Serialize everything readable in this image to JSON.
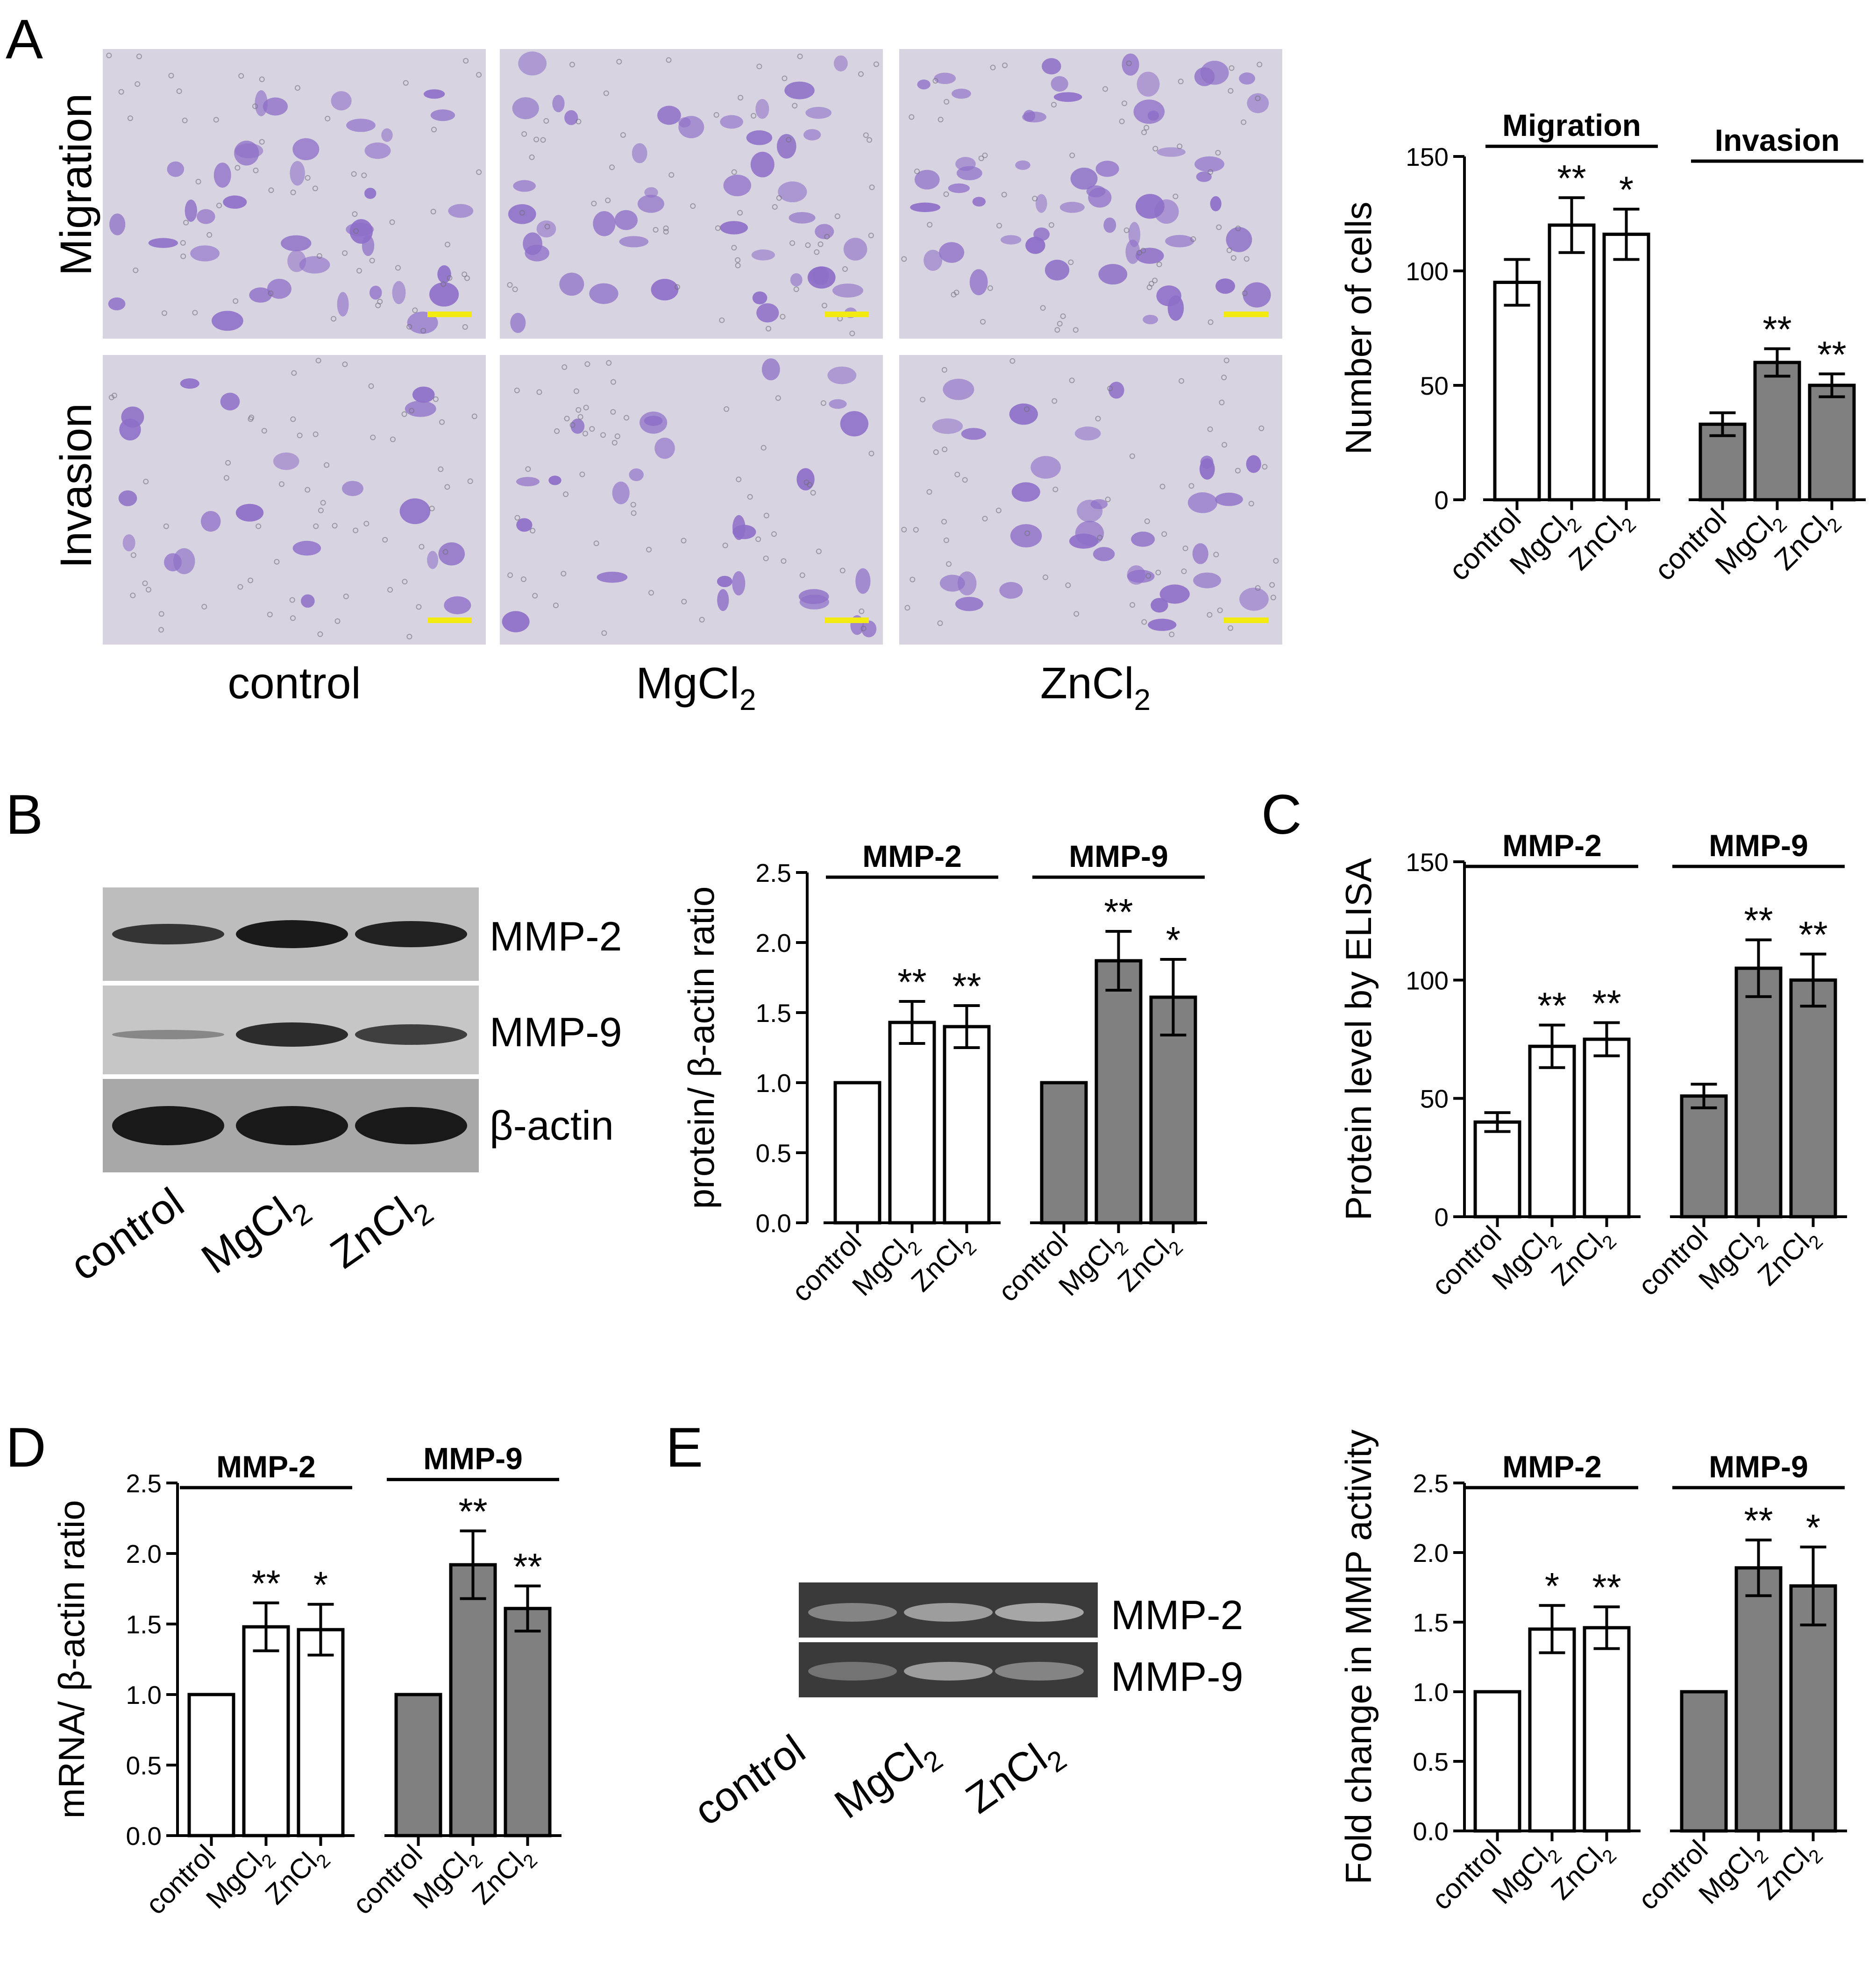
{
  "figure": {
    "panel_labels": [
      "A",
      "B",
      "C",
      "D",
      "E"
    ],
    "groups": [
      "control",
      "MgCl",
      "ZnCl"
    ],
    "subscript": "2",
    "colors": {
      "white_bar": "#ffffff",
      "gray_bar": "#808080",
      "stain": "#8e6fc8",
      "membrane": "#d8d3e0",
      "scale_bar": "#f2ea10"
    }
  },
  "panel_a": {
    "row_labels": [
      "Migration",
      "Invasion"
    ],
    "col_labels": [
      "control",
      "MgCl",
      "ZnCl"
    ]
  },
  "panel_b": {
    "blot_labels": [
      "MMP-2",
      "MMP-9",
      "β-actin"
    ],
    "lane_labels": [
      "control",
      "MgCl",
      "ZnCl"
    ]
  },
  "panel_e": {
    "gel_labels": [
      "MMP-2",
      "MMP-9"
    ],
    "lane_labels": [
      "control",
      "MgCl",
      "ZnCl"
    ]
  },
  "chart_data": [
    {
      "id": "A",
      "type": "bar",
      "ylabel": "Number of cells",
      "ylim": [
        0,
        150
      ],
      "yticks": [
        "0",
        "50",
        "100",
        "150"
      ],
      "categories": [
        "control",
        "MgCl2",
        "ZnCl2"
      ],
      "series": [
        {
          "name": "Migration",
          "values": [
            95,
            120,
            116
          ],
          "errors": [
            10,
            12,
            11
          ],
          "stars": [
            "",
            "**",
            "*"
          ],
          "fill": "white"
        },
        {
          "name": "Invasion",
          "values": [
            33,
            60,
            50
          ],
          "errors": [
            5,
            6,
            5
          ],
          "stars": [
            "",
            "**",
            "**"
          ],
          "fill": "gray"
        }
      ]
    },
    {
      "id": "B",
      "type": "bar",
      "ylabel": "protein/ β-actin ratio",
      "ylim": [
        0,
        2.5
      ],
      "yticks": [
        "0.0",
        "0.5",
        "1.0",
        "1.5",
        "2.0",
        "2.5"
      ],
      "categories": [
        "control",
        "MgCl2",
        "ZnCl2"
      ],
      "series": [
        {
          "name": "MMP-2",
          "values": [
            1.0,
            1.43,
            1.4
          ],
          "errors": [
            0,
            0.15,
            0.15
          ],
          "stars": [
            "",
            "**",
            "**"
          ],
          "fill": "white"
        },
        {
          "name": "MMP-9",
          "values": [
            1.0,
            1.87,
            1.61
          ],
          "errors": [
            0,
            0.21,
            0.27
          ],
          "stars": [
            "",
            "**",
            "*"
          ],
          "fill": "gray"
        }
      ]
    },
    {
      "id": "C",
      "type": "bar",
      "ylabel": "Protein level by ELISA",
      "ylim": [
        0,
        150
      ],
      "yticks": [
        "0",
        "50",
        "100",
        "150"
      ],
      "categories": [
        "control",
        "MgCl2",
        "ZnCl2"
      ],
      "series": [
        {
          "name": "MMP-2",
          "values": [
            40,
            72,
            75
          ],
          "errors": [
            4,
            9,
            7
          ],
          "stars": [
            "",
            "**",
            "**"
          ],
          "fill": "white"
        },
        {
          "name": "MMP-9",
          "values": [
            51,
            105,
            100
          ],
          "errors": [
            5,
            12,
            11
          ],
          "stars": [
            "",
            "**",
            "**"
          ],
          "fill": "gray"
        }
      ]
    },
    {
      "id": "D",
      "type": "bar",
      "ylabel": "mRNA/ β-actin ratio",
      "ylim": [
        0,
        2.5
      ],
      "yticks": [
        "0.0",
        "0.5",
        "1.0",
        "1.5",
        "2.0",
        "2.5"
      ],
      "categories": [
        "control",
        "MgCl2",
        "ZnCl2"
      ],
      "series": [
        {
          "name": "MMP-2",
          "values": [
            1.0,
            1.48,
            1.46
          ],
          "errors": [
            0,
            0.17,
            0.18
          ],
          "stars": [
            "",
            "**",
            "*"
          ],
          "fill": "white"
        },
        {
          "name": "MMP-9",
          "values": [
            1.0,
            1.92,
            1.61
          ],
          "errors": [
            0,
            0.24,
            0.16
          ],
          "stars": [
            "",
            "**",
            "**"
          ],
          "fill": "gray"
        }
      ]
    },
    {
      "id": "E",
      "type": "bar",
      "ylabel": "Fold change in MMP activity",
      "ylim": [
        0,
        2.5
      ],
      "yticks": [
        "0.0",
        "0.5",
        "1.0",
        "1.5",
        "2.0",
        "2.5"
      ],
      "categories": [
        "control",
        "MgCl2",
        "ZnCl2"
      ],
      "series": [
        {
          "name": "MMP-2",
          "values": [
            1.0,
            1.45,
            1.46
          ],
          "errors": [
            0,
            0.17,
            0.15
          ],
          "stars": [
            "",
            "*",
            "**"
          ],
          "fill": "white"
        },
        {
          "name": "MMP-9",
          "values": [
            1.0,
            1.89,
            1.76
          ],
          "errors": [
            0,
            0.2,
            0.28
          ],
          "stars": [
            "",
            "**",
            "*"
          ],
          "fill": "gray"
        }
      ]
    }
  ]
}
